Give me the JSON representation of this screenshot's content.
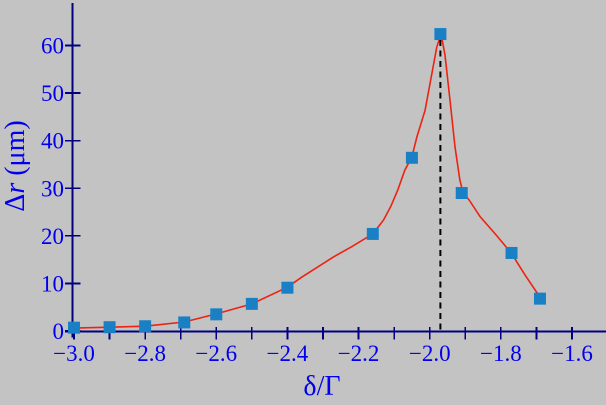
{
  "figure": {
    "background_color": "#c3c3c3",
    "axis_color": "#000080",
    "label_color": "#0000ee",
    "marker_color": "#1a80c6",
    "curve_color": "#ee2211",
    "dashed_line_color": "#000000"
  },
  "chart_data": {
    "type": "scatter",
    "title": "",
    "xlabel": "δ/Γ",
    "ylabel": "Δr (μm)",
    "ylabel_parts": {
      "symbol": "Δ",
      "variable": "r",
      "unit": "(μm)"
    },
    "xlim": [
      -3.0,
      -1.6
    ],
    "ylim": [
      0,
      65
    ],
    "grid": false,
    "legend_position": "none",
    "x_ticks": [
      -3.0,
      -2.8,
      -2.6,
      -2.4,
      -2.2,
      -2.0,
      -1.8,
      -1.6
    ],
    "x_tick_labels": [
      "−3.0",
      "−2.8",
      "−2.6",
      "−2.4",
      "−2.2",
      "−2.0",
      "−1.8",
      "−1.6"
    ],
    "x_minor_ticks": [
      -2.9,
      -2.7,
      -2.5,
      -2.3,
      -2.1,
      -1.9,
      -1.7
    ],
    "y_ticks": [
      0,
      10,
      20,
      30,
      40,
      50,
      60
    ],
    "y_tick_labels": [
      "0",
      "10",
      "20",
      "30",
      "40",
      "50",
      "60"
    ],
    "dashed_vline_x": -1.97,
    "series": [
      {
        "name": "data-points",
        "type": "scatter",
        "marker": "square",
        "points": [
          [
            -3.0,
            0.7
          ],
          [
            -2.9,
            0.8
          ],
          [
            -2.8,
            1.0
          ],
          [
            -2.69,
            1.8
          ],
          [
            -2.6,
            3.5
          ],
          [
            -2.5,
            5.7
          ],
          [
            -2.4,
            9.1
          ],
          [
            -2.16,
            20.4
          ],
          [
            -2.05,
            36.4
          ],
          [
            -1.97,
            62.4
          ],
          [
            -1.91,
            29.0
          ],
          [
            -1.77,
            16.4
          ],
          [
            -1.69,
            6.8
          ]
        ]
      },
      {
        "name": "fit-curve",
        "type": "line",
        "points": [
          [
            -3.0,
            0.6
          ],
          [
            -2.9,
            0.8
          ],
          [
            -2.8,
            1.0
          ],
          [
            -2.69,
            1.9
          ],
          [
            -2.6,
            3.6
          ],
          [
            -2.5,
            5.7
          ],
          [
            -2.4,
            9.2
          ],
          [
            -2.36,
            11.3
          ],
          [
            -2.27,
            15.6
          ],
          [
            -2.22,
            17.7
          ],
          [
            -2.16,
            20.4
          ],
          [
            -2.13,
            23.3
          ],
          [
            -2.11,
            26.1
          ],
          [
            -2.09,
            29.6
          ],
          [
            -2.07,
            33.8
          ],
          [
            -2.05,
            36.6
          ],
          [
            -2.036,
            40.8
          ],
          [
            -2.013,
            46.4
          ],
          [
            -1.999,
            52.1
          ],
          [
            -1.98,
            59.7
          ],
          [
            -1.968,
            62.4
          ],
          [
            -1.957,
            58.0
          ],
          [
            -1.943,
            48.5
          ],
          [
            -1.929,
            38.7
          ],
          [
            -1.915,
            31.7
          ],
          [
            -1.906,
            29.0
          ],
          [
            -1.889,
            27.5
          ],
          [
            -1.858,
            24.0
          ],
          [
            -1.816,
            20.4
          ],
          [
            -1.771,
            16.4
          ],
          [
            -1.732,
            11.8
          ],
          [
            -1.69,
            7.1
          ]
        ]
      }
    ]
  }
}
